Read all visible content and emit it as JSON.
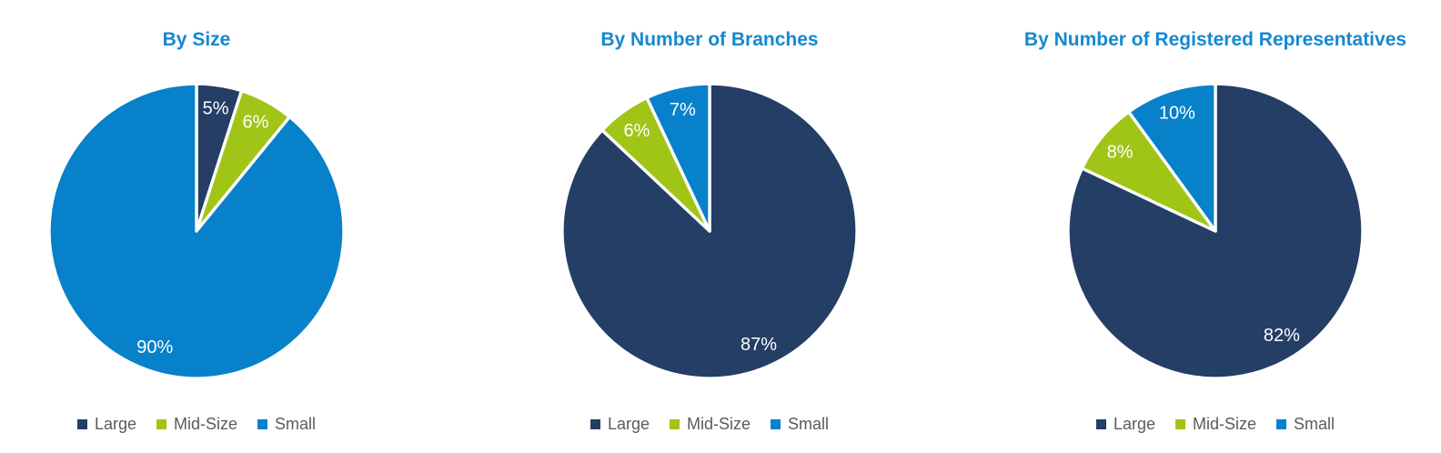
{
  "colors": {
    "title": "#1588D1",
    "legend_text": "#5B5B5B",
    "slice_label": "#FFFFFF",
    "separator": "#FFFFFF",
    "background": "#FFFFFF"
  },
  "chart_data": [
    {
      "type": "pie",
      "title": "By Size",
      "categories": [
        "Large",
        "Mid-Size",
        "Small"
      ],
      "values": [
        5,
        6,
        90
      ],
      "labels": [
        "5%",
        "6%",
        "90%"
      ],
      "colors": [
        "#243E66",
        "#A1C517",
        "#0781C9"
      ],
      "start_angle": "12 o'clock",
      "direction": "clockwise",
      "legend_position": "bottom",
      "data_label_color": "#FFFFFF"
    },
    {
      "type": "pie",
      "title": "By Number of Branches",
      "categories": [
        "Large",
        "Mid-Size",
        "Small"
      ],
      "values": [
        87,
        6,
        7
      ],
      "labels": [
        "87%",
        "6%",
        "7%"
      ],
      "colors": [
        "#243E66",
        "#A1C517",
        "#0781C9"
      ],
      "start_angle": "12 o'clock",
      "direction": "clockwise",
      "legend_position": "bottom",
      "data_label_color": "#FFFFFF"
    },
    {
      "type": "pie",
      "title": "By Number of Registered Representatives",
      "categories": [
        "Large",
        "Mid-Size",
        "Small"
      ],
      "values": [
        82,
        8,
        10
      ],
      "labels": [
        "82%",
        "8%",
        "10%"
      ],
      "colors": [
        "#243E66",
        "#A1C517",
        "#0781C9"
      ],
      "start_angle": "12 o'clock",
      "direction": "clockwise",
      "legend_position": "bottom",
      "data_label_color": "#FFFFFF"
    }
  ]
}
